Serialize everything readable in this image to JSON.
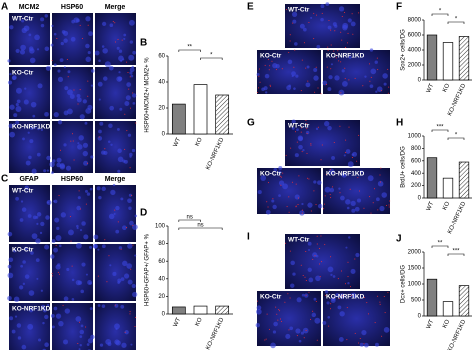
{
  "image_panels": [
    {
      "label": "A",
      "columns": [
        "MCM2",
        "HSP60",
        "Merge"
      ],
      "rows": [
        "WT-Ctr",
        "KO-Ctr",
        "KO-NRF1KD"
      ]
    },
    {
      "label": "C",
      "columns": [
        "GFAP",
        "HSP60",
        "Merge"
      ],
      "rows": [
        "WT-Ctr",
        "KO-Ctr",
        "KO-NRF1KD"
      ]
    },
    {
      "label": "E",
      "tiles": [
        "WT-Ctr",
        "KO-Ctr",
        "KO-NRF1KD"
      ]
    },
    {
      "label": "G",
      "tiles": [
        "WT-Ctr",
        "KO-Ctr",
        "KO-NRF1KD"
      ]
    },
    {
      "label": "I",
      "tiles": [
        "WT-Ctr",
        "KO-Ctr",
        "KO-NRF1KD"
      ]
    }
  ],
  "chart_data": [
    {
      "type": "bar",
      "panel": "B",
      "y_label": "HSP60+MCM2+/ MCM2+ %",
      "categories": [
        "WT",
        "KO",
        "KO-NRF1KD"
      ],
      "values": [
        23,
        38,
        30
      ],
      "colors": [
        "#808080",
        "#ffffff",
        "#ffffff"
      ],
      "hatched": [
        false,
        false,
        true
      ],
      "ylim": [
        0,
        60
      ],
      "yticks": [
        0,
        20,
        40,
        60
      ],
      "annotations": [
        {
          "text": "**",
          "between": [
            "WT",
            "KO"
          ]
        },
        {
          "text": "*",
          "between": [
            "KO",
            "KO-NRF1KD"
          ]
        }
      ]
    },
    {
      "type": "bar",
      "panel": "D",
      "y_label": "HSP60+GFAP+/ GFAP+ %",
      "categories": [
        "WT",
        "KO",
        "KO-NRF1KD"
      ],
      "values": [
        8,
        9,
        9
      ],
      "colors": [
        "#808080",
        "#ffffff",
        "#ffffff"
      ],
      "hatched": [
        false,
        false,
        true
      ],
      "ylim": [
        0,
        100
      ],
      "yticks": [
        0,
        20,
        40,
        60,
        80,
        100
      ],
      "annotations": [
        {
          "text": "ns",
          "between": [
            "WT",
            "KO"
          ]
        },
        {
          "text": "ns",
          "between": [
            "WT",
            "KO-NRF1KD"
          ]
        }
      ]
    },
    {
      "type": "bar",
      "panel": "F",
      "y_label": "Sox2+ cells/DG",
      "categories": [
        "WT",
        "KO",
        "KO-NRF1KD"
      ],
      "values": [
        6000,
        5000,
        5800
      ],
      "colors": [
        "#808080",
        "#ffffff",
        "#ffffff"
      ],
      "hatched": [
        false,
        false,
        true
      ],
      "ylim": [
        0,
        8000
      ],
      "yticks": [
        0,
        2000,
        4000,
        6000,
        8000
      ],
      "annotations": [
        {
          "text": "*",
          "between": [
            "WT",
            "KO"
          ]
        },
        {
          "text": "*",
          "between": [
            "KO",
            "KO-NRF1KD"
          ]
        }
      ]
    },
    {
      "type": "bar",
      "panel": "H",
      "y_label": "BrdU+ cells/DG",
      "categories": [
        "WT",
        "KO",
        "KO-NRF1KD"
      ],
      "values": [
        650,
        320,
        580
      ],
      "colors": [
        "#808080",
        "#ffffff",
        "#ffffff"
      ],
      "hatched": [
        false,
        false,
        true
      ],
      "ylim": [
        0,
        1000
      ],
      "yticks": [
        0,
        200,
        400,
        600,
        800,
        1000
      ],
      "annotations": [
        {
          "text": "***",
          "between": [
            "WT",
            "KO"
          ]
        },
        {
          "text": "*",
          "between": [
            "KO",
            "KO-NRF1KD"
          ]
        }
      ]
    },
    {
      "type": "bar",
      "panel": "J",
      "y_label": "Dcx+ cells/DG",
      "categories": [
        "WT",
        "KO",
        "KO-NRF1KD"
      ],
      "values": [
        1150,
        450,
        950
      ],
      "colors": [
        "#808080",
        "#ffffff",
        "#ffffff"
      ],
      "hatched": [
        false,
        false,
        true
      ],
      "ylim": [
        0,
        2000
      ],
      "yticks": [
        0,
        500,
        1000,
        1500,
        2000
      ],
      "annotations": [
        {
          "text": "**",
          "between": [
            "WT",
            "KO"
          ]
        },
        {
          "text": "***",
          "between": [
            "KO",
            "KO-NRF1KD"
          ]
        }
      ]
    }
  ]
}
